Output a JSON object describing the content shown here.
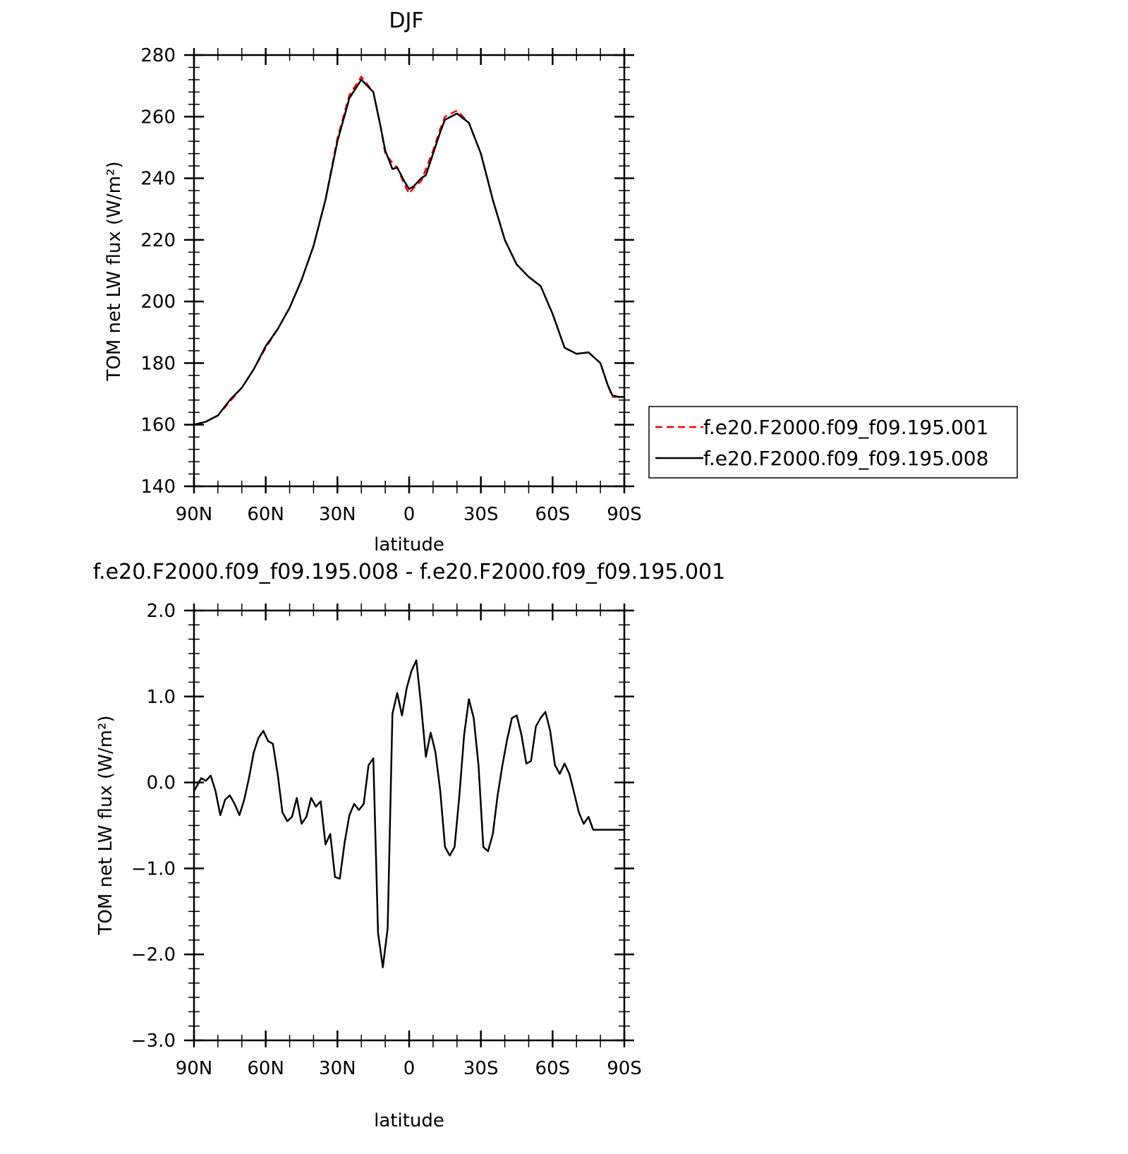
{
  "chart_data": [
    {
      "type": "line",
      "title": "DJF",
      "xlabel": "latitude",
      "ylabel": "TOM net LW flux (W/m²)",
      "xlim": [
        90,
        -90
      ],
      "ylim": [
        140,
        280
      ],
      "x_ticks": [
        90,
        60,
        30,
        0,
        -30,
        -60,
        -90
      ],
      "x_tick_labels": [
        "90N",
        "60N",
        "30N",
        "0",
        "30S",
        "60S",
        "90S"
      ],
      "y_ticks": [
        140,
        160,
        180,
        200,
        220,
        240,
        260,
        280
      ],
      "y_tick_labels": [
        "140",
        "160",
        "180",
        "200",
        "220",
        "240",
        "260",
        "280"
      ],
      "grid": false,
      "legend_position": "right-outside",
      "x": [
        90,
        85,
        80,
        75,
        70,
        65,
        60,
        55,
        50,
        45,
        40,
        35,
        30,
        25,
        20,
        15,
        12,
        10,
        7,
        5,
        2,
        0,
        -2,
        -5,
        -7,
        -10,
        -13,
        -15,
        -20,
        -25,
        -30,
        -35,
        -40,
        -45,
        -50,
        -55,
        -60,
        -65,
        -70,
        -75,
        -80,
        -83,
        -85,
        -88,
        -90
      ],
      "series": [
        {
          "name": "f.e20.F2000.f09_f09.195.001",
          "color": "#ff0000",
          "dash": "dashed",
          "values": [
            160,
            161,
            163,
            167.5,
            172,
            178,
            185,
            191,
            198,
            207,
            218,
            233,
            253,
            267,
            273,
            268,
            257,
            248,
            245,
            243.5,
            238,
            235,
            237,
            239,
            243,
            249,
            256,
            260,
            262,
            258,
            248,
            233,
            220,
            212,
            208,
            205,
            196,
            185,
            183,
            183.5,
            180,
            173,
            169,
            169,
            169
          ]
        },
        {
          "name": "f.e20.F2000.f09_f09.195.008",
          "color": "#000000",
          "dash": "solid",
          "values": [
            160,
            161,
            163,
            168,
            172,
            178,
            185.5,
            191,
            198,
            207,
            218,
            233,
            252,
            266,
            272,
            268,
            257,
            249,
            243,
            243.5,
            239,
            236.5,
            237.5,
            240,
            241,
            248,
            255,
            259,
            261,
            258,
            248,
            233,
            220,
            212,
            208,
            205,
            196,
            185,
            183,
            183.5,
            180,
            173,
            169.5,
            169,
            169
          ]
        }
      ]
    },
    {
      "type": "line",
      "title": "f.e20.F2000.f09_f09.195.008 - f.e20.F2000.f09_f09.195.001",
      "xlabel": "latitude",
      "ylabel": "TOM net LW flux (W/m²)",
      "xlim": [
        90,
        -90
      ],
      "ylim": [
        -3.0,
        2.0
      ],
      "x_ticks": [
        90,
        60,
        30,
        0,
        -30,
        -60,
        -90
      ],
      "x_tick_labels": [
        "90N",
        "60N",
        "30N",
        "0",
        "30S",
        "60S",
        "90S"
      ],
      "y_ticks": [
        -3.0,
        -2.0,
        -1.0,
        0.0,
        1.0,
        2.0
      ],
      "y_tick_labels": [
        "−3.0",
        "−2.0",
        "−1.0",
        "0.0",
        "1.0",
        "2.0"
      ],
      "grid": false,
      "x": [
        90,
        87,
        85,
        83,
        81,
        79,
        77,
        75,
        73,
        71,
        69,
        67,
        65,
        63,
        61,
        59,
        57,
        55,
        53,
        51,
        49,
        47,
        45,
        43,
        41,
        39,
        37,
        35,
        33,
        31,
        29,
        27,
        25,
        23,
        21,
        19,
        17,
        15,
        13,
        11,
        9,
        7,
        5,
        3,
        1,
        -1,
        -3,
        -5,
        -7,
        -9,
        -11,
        -13,
        -15,
        -17,
        -19,
        -21,
        -23,
        -25,
        -27,
        -29,
        -31,
        -33,
        -35,
        -37,
        -39,
        -41,
        -43,
        -45,
        -47,
        -49,
        -51,
        -53,
        -55,
        -57,
        -59,
        -61,
        -63,
        -65,
        -67,
        -69,
        -71,
        -73,
        -75,
        -77,
        -79,
        -81,
        -83,
        -85,
        -87,
        -89,
        -90
      ],
      "series": [
        {
          "name": "",
          "color": "#000000",
          "dash": "solid",
          "values": [
            -0.1,
            0.05,
            0.02,
            0.08,
            -0.1,
            -0.38,
            -0.2,
            -0.15,
            -0.25,
            -0.38,
            -0.2,
            0.05,
            0.35,
            0.52,
            0.6,
            0.48,
            0.45,
            0.1,
            -0.35,
            -0.45,
            -0.4,
            -0.18,
            -0.48,
            -0.4,
            -0.18,
            -0.28,
            -0.22,
            -0.72,
            -0.6,
            -1.1,
            -1.12,
            -0.7,
            -0.38,
            -0.25,
            -0.32,
            -0.25,
            0.2,
            0.28,
            -1.75,
            -2.15,
            -1.7,
            0.8,
            1.04,
            0.78,
            1.1,
            1.3,
            1.42,
            0.9,
            0.3,
            0.58,
            0.35,
            -0.1,
            -0.75,
            -0.85,
            -0.75,
            -0.15,
            0.55,
            0.97,
            0.75,
            0.2,
            -0.75,
            -0.8,
            -0.6,
            -0.15,
            0.2,
            0.5,
            0.75,
            0.78,
            0.55,
            0.22,
            0.25,
            0.65,
            0.75,
            0.82,
            0.6,
            0.2,
            0.1,
            0.22,
            0.1,
            -0.12,
            -0.35,
            -0.48,
            -0.4,
            -0.55,
            -0.55,
            -0.55,
            -0.55,
            -0.55,
            -0.55,
            -0.55,
            -0.55
          ]
        }
      ]
    }
  ]
}
